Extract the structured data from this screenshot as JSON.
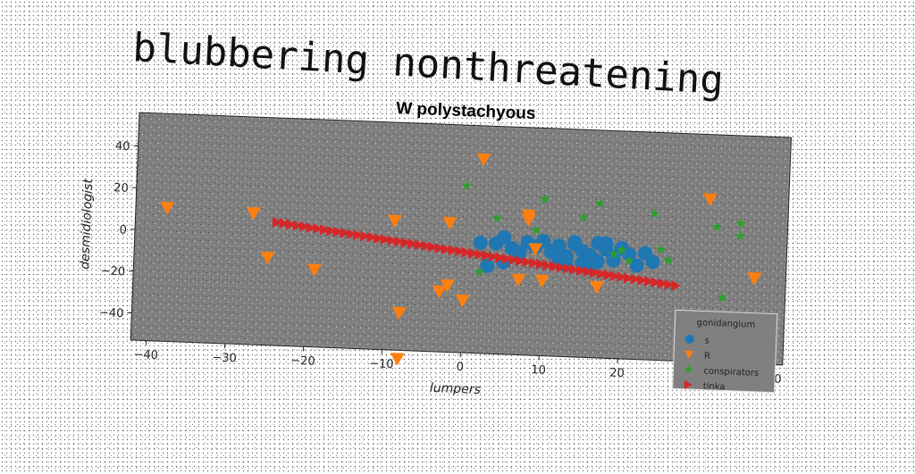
{
  "page_title": "blubbering nonthreatening",
  "colors": {
    "plot_background": "#808080",
    "series": [
      "#1f77b4",
      "#ff7f0e",
      "#2ca02c",
      "#d62728"
    ]
  },
  "chart_data": {
    "type": "scatter",
    "title": "W polystachyous",
    "xlabel": "lumpers",
    "ylabel": "desmidiologist",
    "xlim": [
      -42,
      41
    ],
    "ylim": [
      -53,
      56
    ],
    "xticks": [
      -40,
      -30,
      -20,
      -10,
      0,
      10,
      20,
      30,
      40
    ],
    "yticks": [
      -40,
      -20,
      0,
      20,
      40
    ],
    "grid": false,
    "legend": {
      "title": "gonidangium",
      "placement": "bottom-right"
    },
    "series": [
      {
        "name": "s",
        "marker": "circle",
        "color": "#1f77b4",
        "points": [
          [
            2,
            0
          ],
          [
            4,
            0
          ],
          [
            5,
            3
          ],
          [
            6,
            -2
          ],
          [
            7,
            -4
          ],
          [
            8,
            1
          ],
          [
            9,
            -1
          ],
          [
            10,
            2
          ],
          [
            11,
            -3
          ],
          [
            12,
            0
          ],
          [
            13,
            -5
          ],
          [
            14,
            1
          ],
          [
            15,
            -2
          ],
          [
            16,
            -4
          ],
          [
            17,
            2
          ],
          [
            18,
            -1
          ],
          [
            19,
            -6
          ],
          [
            20,
            0
          ],
          [
            21,
            -3
          ],
          [
            22,
            -8
          ],
          [
            23,
            -2
          ],
          [
            24,
            -6
          ],
          [
            15,
            -8
          ],
          [
            13,
            -9
          ],
          [
            16,
            -10
          ],
          [
            19,
            -4
          ],
          [
            17,
            -7
          ],
          [
            12,
            -6
          ],
          [
            5,
            -9
          ],
          [
            3,
            -11
          ],
          [
            14,
            2
          ],
          [
            18,
            2
          ]
        ]
      },
      {
        "name": "R",
        "marker": "triangle-down",
        "color": "#ff7f0e",
        "points": [
          [
            -38,
            11
          ],
          [
            -27,
            10
          ],
          [
            -25,
            -11
          ],
          [
            -19,
            -16
          ],
          [
            -9,
            9
          ],
          [
            -8,
            -35
          ],
          [
            -8,
            -57
          ],
          [
            -3,
            -24
          ],
          [
            -2,
            -21
          ],
          [
            -2,
            9
          ],
          [
            0,
            -28
          ],
          [
            2,
            40
          ],
          [
            7,
            -17
          ],
          [
            8,
            12
          ],
          [
            8,
            14
          ],
          [
            9,
            -2
          ],
          [
            10,
            -17
          ],
          [
            17,
            -19
          ],
          [
            31,
            25
          ],
          [
            37,
            -12
          ]
        ]
      },
      {
        "name": "conspirators",
        "marker": "star",
        "color": "#2ca02c",
        "points": [
          [
            0,
            27
          ],
          [
            2,
            -14
          ],
          [
            4,
            12
          ],
          [
            9,
            7
          ],
          [
            10,
            22
          ],
          [
            15,
            14
          ],
          [
            17,
            21
          ],
          [
            19,
            -3
          ],
          [
            20,
            -1
          ],
          [
            21,
            -6
          ],
          [
            24,
            17
          ],
          [
            25,
            0
          ],
          [
            26,
            -5
          ],
          [
            32,
            12
          ],
          [
            33,
            -22
          ],
          [
            35,
            14
          ],
          [
            35,
            8
          ]
        ]
      },
      {
        "name": "tinka",
        "marker": "triangle-right",
        "color": "#d62728",
        "line": {
          "from": [
            -24,
            6
          ],
          "to": [
            27,
            -17
          ],
          "count": 60
        }
      }
    ]
  }
}
